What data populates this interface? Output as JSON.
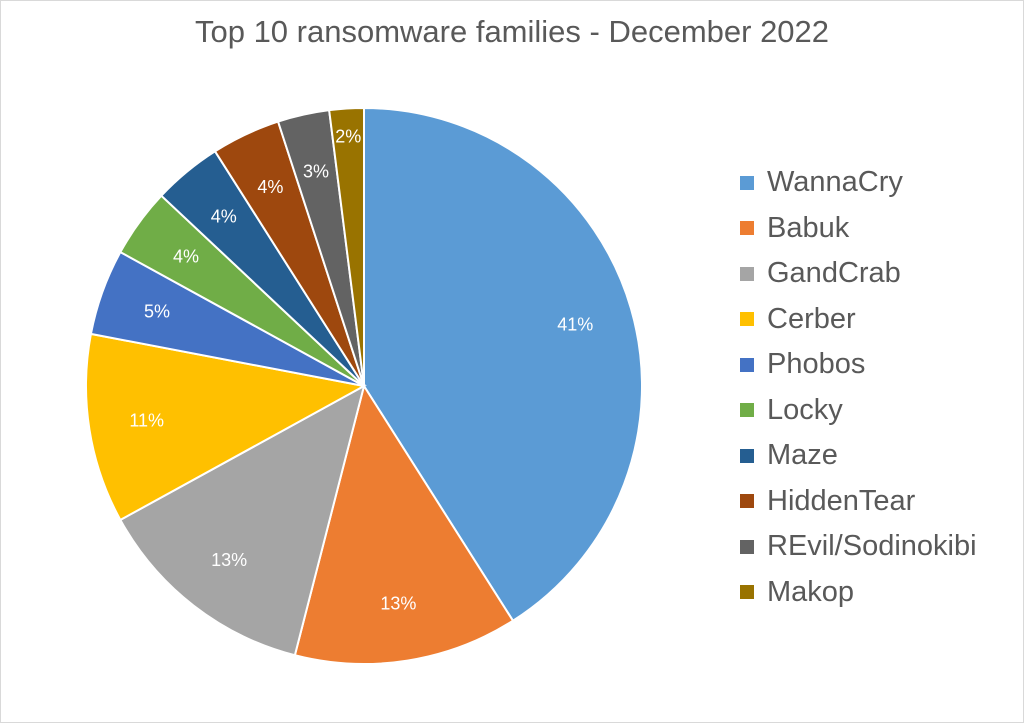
{
  "chart_data": {
    "type": "pie",
    "title": "Top 10 ransomware families - December 2022",
    "legend_position": "right",
    "slices": [
      {
        "name": "WannaCry",
        "value": 41,
        "label": "41%",
        "color": "#5b9bd5"
      },
      {
        "name": "Babuk",
        "value": 13,
        "label": "13%",
        "color": "#ed7d31"
      },
      {
        "name": "GandCrab",
        "value": 13,
        "label": "13%",
        "color": "#a5a5a5"
      },
      {
        "name": "Cerber",
        "value": 11,
        "label": "11%",
        "color": "#ffc000"
      },
      {
        "name": "Phobos",
        "value": 5,
        "label": "5%",
        "color": "#4472c4"
      },
      {
        "name": "Locky",
        "value": 4,
        "label": "4%",
        "color": "#70ad47"
      },
      {
        "name": "Maze",
        "value": 4,
        "label": "4%",
        "color": "#255e91"
      },
      {
        "name": "HiddenTear",
        "value": 4,
        "label": "4%",
        "color": "#9e480e"
      },
      {
        "name": "REvil/Sodinokibi",
        "value": 3,
        "label": "3%",
        "color": "#636363"
      },
      {
        "name": "Makop",
        "value": 2,
        "label": "2%",
        "color": "#997300"
      }
    ]
  }
}
